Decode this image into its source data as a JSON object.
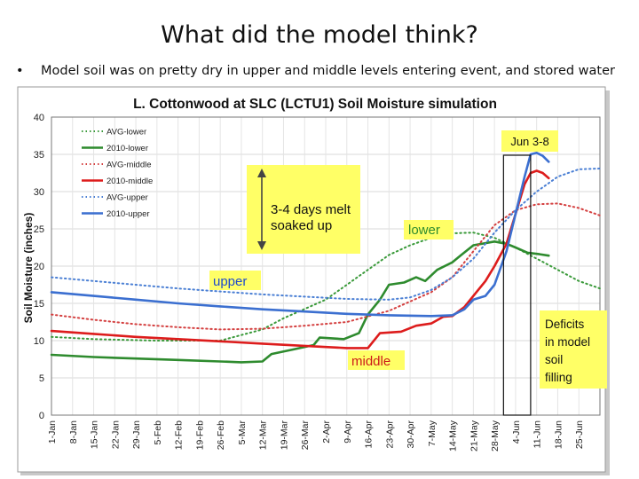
{
  "slide": {
    "title": "What did the model think?",
    "bullet": "Model soil was on pretty dry in upper and middle levels entering event, and stored water",
    "bullet_marker": "•"
  },
  "chart_data": {
    "type": "line",
    "title": "L. Cottonwood at SLC (LCTU1) Soil Moisture simulation",
    "xlabel": "",
    "ylabel": "Soil Moisture (inches)",
    "ylim": [
      0,
      40
    ],
    "yticks": [
      0,
      5,
      10,
      15,
      20,
      25,
      30,
      35,
      40
    ],
    "xlim": [
      "1-Jan",
      "2-Jul"
    ],
    "xticks": [
      "1-Jan",
      "8-Jan",
      "15-Jan",
      "22-Jan",
      "29-Jan",
      "5-Feb",
      "12-Feb",
      "19-Feb",
      "26-Feb",
      "5-Mar",
      "12-Mar",
      "19-Mar",
      "26-Mar",
      "2-Apr",
      "9-Apr",
      "16-Apr",
      "23-Apr",
      "30-Apr",
      "7-May",
      "14-May",
      "21-May",
      "28-May",
      "4-Jun",
      "11-Jun",
      "18-Jun",
      "25-Jun"
    ],
    "grid": true,
    "legend_position": "top-left",
    "series": [
      {
        "name": "AVG-lower",
        "color": "#3a9a3a",
        "style": "dotted",
        "points": [
          [
            "1-Jan",
            10.5
          ],
          [
            "15-Jan",
            10.2
          ],
          [
            "5-Feb",
            10.0
          ],
          [
            "26-Feb",
            10.0
          ],
          [
            "12-Mar",
            11.5
          ],
          [
            "19-Mar",
            13.0
          ],
          [
            "2-Apr",
            15.5
          ],
          [
            "9-Apr",
            17.5
          ],
          [
            "16-Apr",
            19.5
          ],
          [
            "23-Apr",
            21.5
          ],
          [
            "30-Apr",
            22.8
          ],
          [
            "7-May",
            23.8
          ],
          [
            "14-May",
            24.4
          ],
          [
            "21-May",
            24.5
          ],
          [
            "28-May",
            23.8
          ],
          [
            "4-Jun",
            22.5
          ],
          [
            "11-Jun",
            21.0
          ],
          [
            "18-Jun",
            19.5
          ],
          [
            "25-Jun",
            18.0
          ],
          [
            "2-Jul",
            17.0
          ]
        ]
      },
      {
        "name": "2010-lower",
        "color": "#2e8b2e",
        "style": "solid",
        "points": [
          [
            "1-Jan",
            8.1
          ],
          [
            "15-Jan",
            7.8
          ],
          [
            "29-Jan",
            7.6
          ],
          [
            "12-Feb",
            7.4
          ],
          [
            "26-Feb",
            7.2
          ],
          [
            "5-Mar",
            7.1
          ],
          [
            "12-Mar",
            7.2
          ],
          [
            "15-Mar",
            8.2
          ],
          [
            "22-Mar",
            8.8
          ],
          [
            "29-Mar",
            9.4
          ],
          [
            "31-Mar",
            10.4
          ],
          [
            "8-Apr",
            10.2
          ],
          [
            "13-Apr",
            11.0
          ],
          [
            "16-Apr",
            13.5
          ],
          [
            "20-Apr",
            15.5
          ],
          [
            "23-Apr",
            17.5
          ],
          [
            "28-Apr",
            17.8
          ],
          [
            "2-May",
            18.5
          ],
          [
            "5-May",
            18.0
          ],
          [
            "9-May",
            19.5
          ],
          [
            "14-May",
            20.5
          ],
          [
            "17-May",
            21.5
          ],
          [
            "21-May",
            22.8
          ],
          [
            "28-May",
            23.3
          ],
          [
            "1-Jun",
            23.0
          ],
          [
            "4-Jun",
            22.5
          ],
          [
            "8-Jun",
            21.8
          ],
          [
            "12-Jun",
            21.6
          ],
          [
            "15-Jun",
            21.4
          ]
        ]
      },
      {
        "name": "AVG-middle",
        "color": "#d44040",
        "style": "dotted",
        "points": [
          [
            "1-Jan",
            13.5
          ],
          [
            "15-Jan",
            12.8
          ],
          [
            "29-Jan",
            12.2
          ],
          [
            "12-Feb",
            11.8
          ],
          [
            "26-Feb",
            11.5
          ],
          [
            "12-Mar",
            11.6
          ],
          [
            "26-Mar",
            12.0
          ],
          [
            "9-Apr",
            12.5
          ],
          [
            "23-Apr",
            14.0
          ],
          [
            "7-May",
            16.5
          ],
          [
            "14-May",
            18.5
          ],
          [
            "21-May",
            22.0
          ],
          [
            "28-May",
            25.5
          ],
          [
            "4-Jun",
            27.5
          ],
          [
            "11-Jun",
            28.3
          ],
          [
            "18-Jun",
            28.4
          ],
          [
            "25-Jun",
            27.8
          ],
          [
            "2-Jul",
            26.8
          ]
        ]
      },
      {
        "name": "2010-middle",
        "color": "#dd1c1c",
        "style": "solid",
        "points": [
          [
            "1-Jan",
            11.3
          ],
          [
            "15-Jan",
            10.9
          ],
          [
            "29-Jan",
            10.5
          ],
          [
            "12-Feb",
            10.2
          ],
          [
            "26-Feb",
            9.9
          ],
          [
            "12-Mar",
            9.6
          ],
          [
            "26-Mar",
            9.3
          ],
          [
            "9-Apr",
            9.0
          ],
          [
            "16-Apr",
            9.0
          ],
          [
            "20-Apr",
            11.0
          ],
          [
            "27-Apr",
            11.2
          ],
          [
            "2-May",
            12.0
          ],
          [
            "7-May",
            12.3
          ],
          [
            "11-May",
            13.2
          ],
          [
            "14-May",
            13.3
          ],
          [
            "18-May",
            14.5
          ],
          [
            "21-May",
            16.0
          ],
          [
            "25-May",
            18.0
          ],
          [
            "28-May",
            20.0
          ],
          [
            "1-Jun",
            23.0
          ],
          [
            "4-Jun",
            27.0
          ],
          [
            "7-Jun",
            31.0
          ],
          [
            "9-Jun",
            32.5
          ],
          [
            "11-Jun",
            32.8
          ],
          [
            "13-Jun",
            32.5
          ],
          [
            "15-Jun",
            31.8
          ]
        ]
      },
      {
        "name": "AVG-upper",
        "color": "#4a7fd4",
        "style": "dotted",
        "points": [
          [
            "1-Jan",
            18.5
          ],
          [
            "15-Jan",
            18.0
          ],
          [
            "29-Jan",
            17.5
          ],
          [
            "12-Feb",
            17.0
          ],
          [
            "26-Feb",
            16.6
          ],
          [
            "12-Mar",
            16.2
          ],
          [
            "26-Mar",
            15.9
          ],
          [
            "9-Apr",
            15.6
          ],
          [
            "23-Apr",
            15.5
          ],
          [
            "30-Apr",
            15.8
          ],
          [
            "7-May",
            16.8
          ],
          [
            "14-May",
            18.5
          ],
          [
            "21-May",
            21.0
          ],
          [
            "28-May",
            24.5
          ],
          [
            "4-Jun",
            27.5
          ],
          [
            "11-Jun",
            30.0
          ],
          [
            "18-Jun",
            32.0
          ],
          [
            "25-Jun",
            33.0
          ],
          [
            "2-Jul",
            33.1
          ]
        ]
      },
      {
        "name": "2010-upper",
        "color": "#3b6fd0",
        "style": "solid",
        "points": [
          [
            "1-Jan",
            16.5
          ],
          [
            "15-Jan",
            16.0
          ],
          [
            "29-Jan",
            15.5
          ],
          [
            "12-Feb",
            15.0
          ],
          [
            "26-Feb",
            14.6
          ],
          [
            "12-Mar",
            14.2
          ],
          [
            "26-Mar",
            13.9
          ],
          [
            "9-Apr",
            13.6
          ],
          [
            "23-Apr",
            13.4
          ],
          [
            "7-May",
            13.3
          ],
          [
            "14-May",
            13.4
          ],
          [
            "18-May",
            14.2
          ],
          [
            "21-May",
            15.5
          ],
          [
            "25-May",
            16.0
          ],
          [
            "28-May",
            17.5
          ],
          [
            "1-Jun",
            22.0
          ],
          [
            "4-Jun",
            27.0
          ],
          [
            "7-Jun",
            32.0
          ],
          [
            "9-Jun",
            35.0
          ],
          [
            "11-Jun",
            35.2
          ],
          [
            "13-Jun",
            34.8
          ],
          [
            "15-Jun",
            34.0
          ]
        ]
      }
    ],
    "annotations": {
      "arrow_box": "3-4 days melt soaked up",
      "label_lower": "lower",
      "label_upper": "upper",
      "label_middle": "middle",
      "date_range": "Jun 3-8",
      "deficits": "Deficits in model soil filling"
    }
  }
}
